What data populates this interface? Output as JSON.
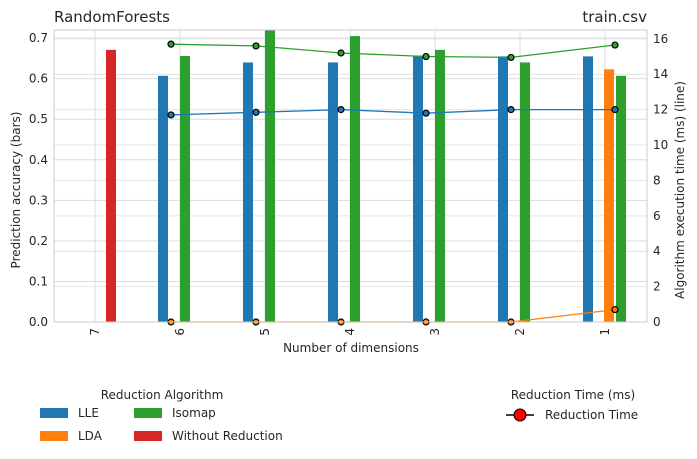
{
  "chart_data": {
    "type": "bar",
    "title_left": "RandomForests",
    "title_right": "train.csv",
    "xlabel": "Number of dimensions",
    "ylabel_left": "Prediction accuracy (bars)",
    "ylabel_right": "Algorithm execution time (ms) (line)",
    "categories": [
      "7",
      "6",
      "5",
      "4",
      "3",
      "2",
      "1"
    ],
    "ylim_left": [
      0,
      0.72
    ],
    "yticks_left": [
      "0.0",
      "0.1",
      "0.2",
      "0.3",
      "0.4",
      "0.5",
      "0.6",
      "0.7"
    ],
    "ylim_right": [
      0,
      16.5
    ],
    "yticks_right": [
      "0",
      "2",
      "4",
      "6",
      "8",
      "10",
      "12",
      "14",
      "16"
    ],
    "grid": true,
    "bar_series": [
      {
        "name": "LLE",
        "color": "#1f77b4",
        "values": [
          null,
          0.607,
          0.64,
          0.64,
          0.657,
          0.655,
          0.655
        ]
      },
      {
        "name": "LDA",
        "color": "#ff7f0e",
        "values": [
          null,
          null,
          null,
          null,
          null,
          null,
          0.623
        ]
      },
      {
        "name": "Isomap",
        "color": "#2ca02c",
        "values": [
          null,
          0.656,
          0.72,
          0.705,
          0.671,
          0.64,
          0.607
        ]
      },
      {
        "name": "Without Reduction",
        "color": "#d62728",
        "values": [
          0.671,
          null,
          null,
          null,
          null,
          null,
          null
        ]
      }
    ],
    "line_series": [
      {
        "name": "LLE",
        "color": "#1f77b4",
        "values": [
          null,
          11.7,
          11.85,
          12.0,
          11.8,
          12.0,
          12.0
        ]
      },
      {
        "name": "LDA",
        "color": "#ff7f0e",
        "values": [
          null,
          0.0,
          0.0,
          0.0,
          0.0,
          0.0,
          0.7
        ]
      },
      {
        "name": "Isomap",
        "color": "#2ca02c",
        "values": [
          null,
          15.7,
          15.6,
          15.2,
          15.0,
          14.95,
          15.65
        ]
      }
    ],
    "legend_bars_title": "Reduction Algorithm",
    "legend_line_title": "Reduction Time (ms)",
    "legend_line_label": "Reduction Time"
  }
}
